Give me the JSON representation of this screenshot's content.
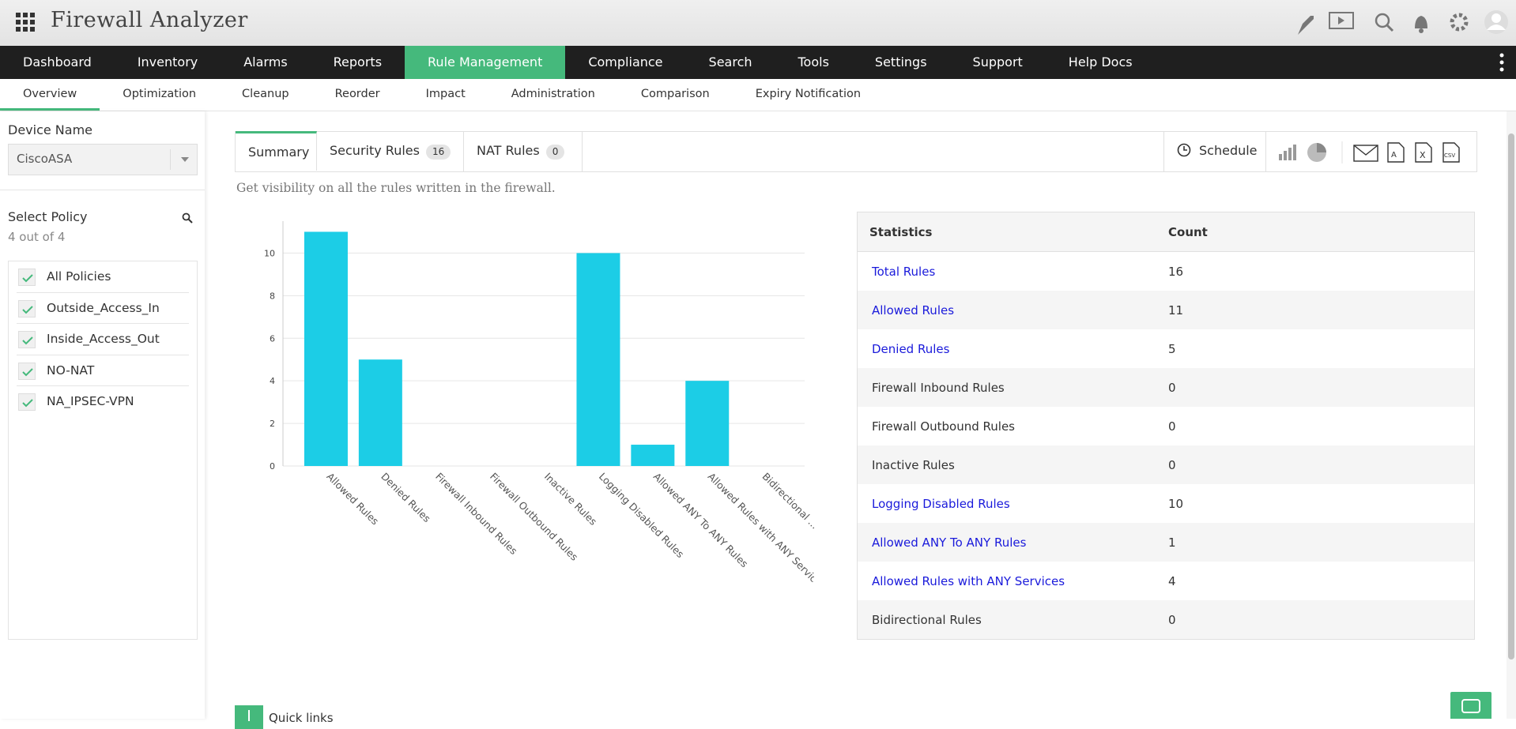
{
  "header": {
    "app_title": "Firewall Analyzer"
  },
  "nav": {
    "items": [
      "Dashboard",
      "Inventory",
      "Alarms",
      "Reports",
      "Rule Management",
      "Compliance",
      "Search",
      "Tools",
      "Settings",
      "Support",
      "Help Docs"
    ],
    "active": 4
  },
  "subnav": {
    "items": [
      "Overview",
      "Optimization",
      "Cleanup",
      "Reorder",
      "Impact",
      "Administration",
      "Comparison",
      "Expiry Notification"
    ],
    "active": 0
  },
  "sidebar": {
    "device_label": "Device Name",
    "device_value": "CiscoASA",
    "policy_label": "Select Policy",
    "policy_count": "4 out of 4",
    "policies": [
      "All Policies",
      "Outside_Access_In",
      "Inside_Access_Out",
      "NO-NAT",
      "NA_IPSEC-VPN"
    ]
  },
  "tabs": {
    "summary": "Summary",
    "security_rules": "Security Rules",
    "security_count": 16,
    "nat_rules": "NAT Rules",
    "nat_count": 0,
    "schedule": "Schedule"
  },
  "description": "Get visibility on all the rules written in the firewall.",
  "chart_data": {
    "type": "bar",
    "categories": [
      "Allowed Rules",
      "Denied Rules",
      "Firewall Inbound Rules",
      "Firewall Outbound Rules",
      "Inactive Rules",
      "Logging Disabled Rules",
      "Allowed ANY To ANY Rules",
      "Allowed Rules with ANY Services",
      "Bidirectional ..."
    ],
    "values": [
      11,
      5,
      0,
      0,
      0,
      10,
      1,
      4,
      0
    ],
    "color": "#1ccde6",
    "ylim": [
      0,
      11.5
    ],
    "yticks": [
      0,
      2,
      4,
      6,
      8,
      10
    ],
    "grid": true
  },
  "table": {
    "headers": [
      "Statistics",
      "Count"
    ],
    "link_color": "#1a1adb",
    "rows": [
      {
        "label": "Total Rules",
        "count": 16,
        "link": true
      },
      {
        "label": "Allowed Rules",
        "count": 11,
        "link": true
      },
      {
        "label": "Denied Rules",
        "count": 5,
        "link": true
      },
      {
        "label": "Firewall Inbound Rules",
        "count": 0,
        "link": false
      },
      {
        "label": "Firewall Outbound Rules",
        "count": 0,
        "link": false
      },
      {
        "label": "Inactive Rules",
        "count": 0,
        "link": false
      },
      {
        "label": "Logging Disabled Rules",
        "count": 10,
        "link": true
      },
      {
        "label": "Allowed ANY To ANY Rules",
        "count": 1,
        "link": true
      },
      {
        "label": "Allowed Rules with ANY Services",
        "count": 4,
        "link": true
      },
      {
        "label": "Bidirectional Rules",
        "count": 0,
        "link": false
      }
    ]
  },
  "quick_links": "Quick links"
}
